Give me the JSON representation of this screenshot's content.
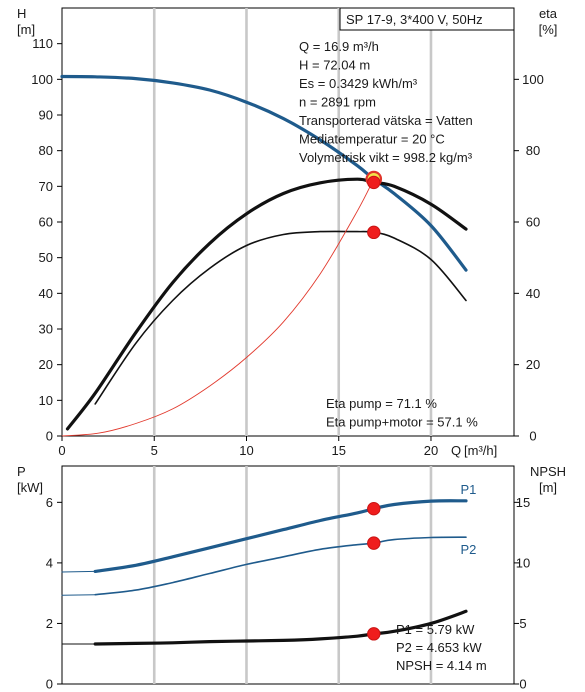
{
  "chart_data": [
    {
      "type": "line",
      "name": "head-efficiency-curve",
      "title": "SP 17-9, 3*400 V, 50Hz",
      "xlabel": "Q [m³/h]",
      "xlabel_name": "Q",
      "xlabel_unit": "[m³/h]",
      "x_ticks": [
        "0",
        "5",
        "10",
        "15",
        "20"
      ],
      "xlim": [
        0,
        24.5
      ],
      "y_left": {
        "name": "H",
        "unit": "[m]",
        "lim": [
          0,
          120
        ],
        "ticks": [
          "0",
          "10",
          "20",
          "30",
          "40",
          "50",
          "60",
          "70",
          "80",
          "90",
          "100",
          "110"
        ]
      },
      "y_right": {
        "name": "eta",
        "unit": "[%]",
        "lim": [
          0,
          120
        ],
        "ticks": [
          "0",
          "20",
          "40",
          "60",
          "80",
          "100"
        ]
      },
      "grid": "vertical",
      "info_box": [
        "Q = 16.9 m³/h",
        "H = 72.04 m",
        "Es = 0.3429 kWh/m³",
        "n = 2891 rpm",
        "Transporterad vätska = Vatten",
        "Mediatemperatur = 20 °C",
        "Volymetrisk vikt = 998.2 kg/m³"
      ],
      "annotations": [
        "Eta pump = 71.1 %",
        "Eta pump+motor = 57.1 %"
      ],
      "series": [
        {
          "key": "head",
          "axis": "left",
          "color": "#1f5b8c",
          "x": [
            0,
            1.8,
            4,
            6,
            8,
            10,
            12,
            14,
            16,
            16.9,
            18,
            20,
            21.9
          ],
          "y": [
            100.8,
            100.7,
            100.2,
            99,
            97,
            93.6,
            89,
            83,
            75.8,
            72.04,
            68,
            59,
            46.5
          ]
        },
        {
          "key": "head-flat-start",
          "axis": "left",
          "color": "#1f5b8c",
          "x": [
            0,
            1.8
          ],
          "y": [
            100.8,
            100.7
          ]
        },
        {
          "key": "eta-pump-motor",
          "axis": "right",
          "color": "#111111",
          "x": [
            1.8,
            4,
            6,
            8,
            10,
            12,
            14,
            16,
            16.9,
            18,
            20,
            21.9
          ],
          "y": [
            9,
            26,
            38,
            47,
            53.4,
            56.5,
            57.3,
            57.3,
            57.1,
            55.5,
            49.5,
            38
          ]
        },
        {
          "key": "eta-pump",
          "axis": "right",
          "color": "#111111",
          "x": [
            0.3,
            1.8,
            4,
            6,
            8,
            10,
            12,
            14,
            16,
            16.9,
            18,
            20,
            21.9
          ],
          "y": [
            2,
            12,
            29,
            43,
            54,
            62.3,
            68,
            71,
            72,
            71.1,
            70,
            65,
            58
          ]
        },
        {
          "key": "system-curve",
          "axis": "left",
          "color": "#e23a2e",
          "x": [
            0,
            2,
            4,
            6,
            8,
            10,
            12,
            14,
            16,
            16.9
          ],
          "y": [
            0,
            0.8,
            3.5,
            7.6,
            14,
            22,
            32,
            45.5,
            63,
            72.04
          ]
        }
      ],
      "operating_points": [
        {
          "axis": "left",
          "x": 16.9,
          "y": 72.04,
          "style": "highlight"
        },
        {
          "axis": "right",
          "x": 16.9,
          "y": 71.1,
          "style": "dot"
        },
        {
          "axis": "right",
          "x": 16.9,
          "y": 57.1,
          "style": "dot"
        }
      ]
    },
    {
      "type": "line",
      "name": "power-npsh-curve",
      "xlim": [
        0,
        24.5
      ],
      "y_left": {
        "name": "P",
        "unit": "[kW]",
        "lim": [
          0,
          7.2
        ],
        "ticks": [
          "0",
          "2",
          "4",
          "6"
        ]
      },
      "y_right": {
        "name": "NPSH",
        "unit": "[m]",
        "lim": [
          0,
          18
        ],
        "ticks": [
          "0",
          "5",
          "10",
          "15"
        ]
      },
      "grid": "vertical",
      "annotations": [
        "P1 = 5.79 kW",
        "P2 = 4.653 kW",
        "NPSH = 4.14 m"
      ],
      "series": [
        {
          "key": "P1",
          "name": "P1",
          "axis": "left",
          "color": "#1f5b8c",
          "x": [
            1.8,
            4,
            6,
            8,
            10,
            12,
            14,
            16,
            16.9,
            18,
            20,
            21.9
          ],
          "y": [
            3.72,
            3.92,
            4.2,
            4.5,
            4.8,
            5.1,
            5.4,
            5.65,
            5.79,
            5.93,
            6.04,
            6.05
          ]
        },
        {
          "key": "P1-flat-start",
          "axis": "left",
          "color": "#1f5b8c",
          "x": [
            0,
            1.8
          ],
          "y": [
            3.7,
            3.72
          ]
        },
        {
          "key": "P2",
          "name": "P2",
          "axis": "left",
          "color": "#1f5b8c",
          "x": [
            1.8,
            4,
            6,
            8,
            10,
            12,
            14,
            16,
            16.9,
            18,
            20,
            21.9
          ],
          "y": [
            2.95,
            3.1,
            3.35,
            3.65,
            3.95,
            4.2,
            4.45,
            4.6,
            4.653,
            4.77,
            4.84,
            4.85
          ]
        },
        {
          "key": "P2-flat-start",
          "axis": "left",
          "color": "#1f5b8c",
          "x": [
            0,
            1.8
          ],
          "y": [
            2.93,
            2.95
          ]
        },
        {
          "key": "NPSH",
          "axis": "right",
          "color": "#111111",
          "x": [
            1.8,
            4,
            6,
            8,
            10,
            12,
            14,
            16,
            16.9,
            18,
            20,
            21.9
          ],
          "y": [
            3.3,
            3.35,
            3.4,
            3.5,
            3.55,
            3.6,
            3.72,
            3.95,
            4.14,
            4.35,
            5.0,
            6.0
          ]
        },
        {
          "key": "NPSH-flat-start",
          "axis": "right",
          "color": "#111111",
          "x": [
            0,
            1.8
          ],
          "y": [
            3.3,
            3.3
          ]
        }
      ],
      "operating_points": [
        {
          "axis": "left",
          "x": 16.9,
          "y": 5.79,
          "style": "dot"
        },
        {
          "axis": "left",
          "x": 16.9,
          "y": 4.653,
          "style": "dot"
        },
        {
          "axis": "right",
          "x": 16.9,
          "y": 4.14,
          "style": "dot"
        }
      ]
    }
  ]
}
